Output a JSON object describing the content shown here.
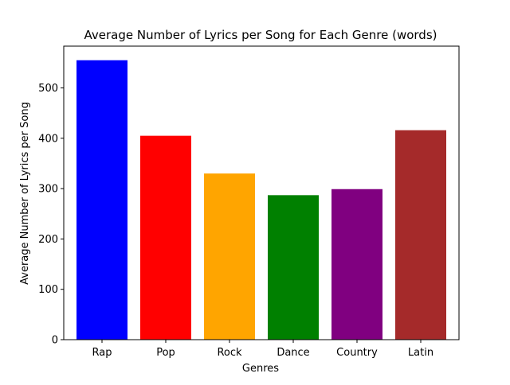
{
  "chart_data": {
    "type": "bar",
    "title": "Average Number of Lyrics per Song for Each Genre (words)",
    "xlabel": "Genres",
    "ylabel": "Average Number of Lyrics per Song",
    "categories": [
      "Rap",
      "Pop",
      "Rock",
      "Dance",
      "Country",
      "Latin"
    ],
    "values": [
      555,
      405,
      330,
      287,
      299,
      416
    ],
    "colors": [
      "#0000ff",
      "#ff0000",
      "#ffa500",
      "#008000",
      "#800080",
      "#a52a2a"
    ],
    "ylim": [
      0,
      583
    ],
    "yticks": [
      0,
      100,
      200,
      300,
      400,
      500
    ],
    "grid": false,
    "legend": "none"
  }
}
